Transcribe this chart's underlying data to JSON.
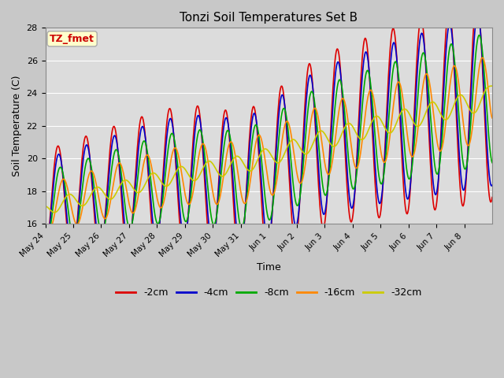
{
  "title": "Tonzi Soil Temperatures Set B",
  "xlabel": "Time",
  "ylabel": "Soil Temperature (C)",
  "ylim": [
    16,
    28
  ],
  "annotation_text": "TZ_fmet",
  "annotation_color": "#cc0000",
  "annotation_bg": "#ffffcc",
  "annotation_border": "#aaaaaa",
  "series": [
    {
      "label": "-2cm",
      "color": "#dd0000",
      "lw": 1.2
    },
    {
      "label": "-4cm",
      "color": "#0000cc",
      "lw": 1.2
    },
    {
      "label": "-8cm",
      "color": "#00aa00",
      "lw": 1.2
    },
    {
      "label": "-16cm",
      "color": "#ff8800",
      "lw": 1.2
    },
    {
      "label": "-32cm",
      "color": "#cccc00",
      "lw": 1.2
    }
  ],
  "tick_labels": [
    "May 24",
    "May 25",
    "May 26",
    "May 27",
    "May 28",
    "May 29",
    "May 30",
    "May 31",
    "Jun 1",
    "Jun 2",
    "Jun 3",
    "Jun 4",
    "Jun 5",
    "Jun 6",
    "Jun 7",
    "Jun 8"
  ],
  "n_points": 768
}
